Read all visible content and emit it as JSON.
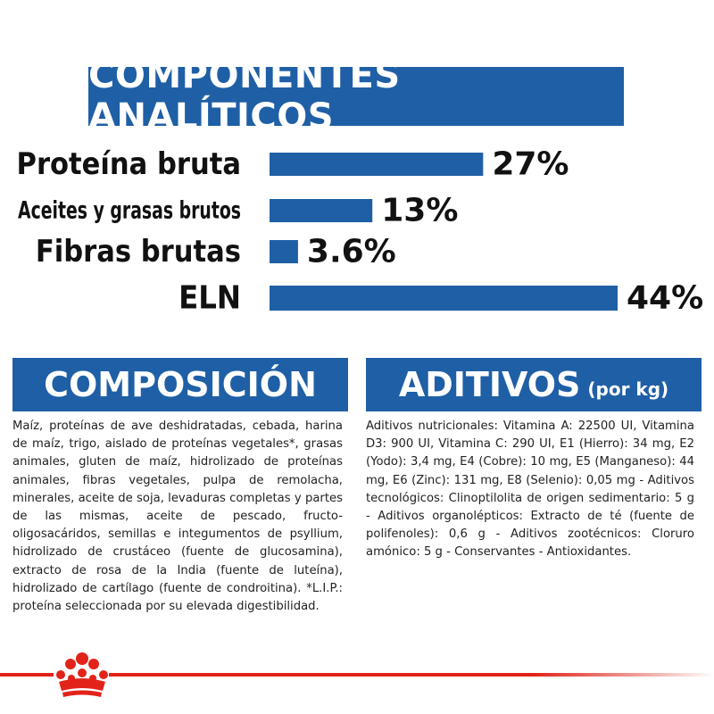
{
  "header": {
    "title": "COMPONENTES ANALÍTICOS"
  },
  "chart_data": {
    "type": "bar",
    "orientation": "horizontal",
    "categories": [
      "Proteína bruta",
      "Aceites y grasas brutos",
      "Fibras brutas",
      "ELN"
    ],
    "values": [
      27,
      13,
      3.6,
      44
    ],
    "value_labels": [
      "27%",
      "13%",
      "3.6%",
      "44%"
    ],
    "xlim": [
      0,
      44
    ],
    "grid": false,
    "legend": "none",
    "bar_color": "#1f5fa6"
  },
  "composicion": {
    "title": "COMPOSICIÓN",
    "text": "Maíz, proteínas de ave deshidratadas, cebada, harina de maíz, trigo, aislado de proteínas vegetales*, grasas animales, gluten de maíz, hidrolizado de proteínas animales, fibras vegetales, pulpa de remolacha, minerales, aceite de soja, levaduras completas y partes de las mismas, aceite de pescado, fructo-oligosacáridos, semillas e integumentos de psyllium, hidrolizado de crustáceo (fuente de glucosamina), extracto de rosa de la India (fuente de luteína), hidrolizado de cartílago (fuente de condroitina). *L.I.P.: proteína seleccionada por su elevada digestibilidad."
  },
  "aditivos": {
    "title": "ADITIVOS",
    "subtitle": "(por kg)",
    "text": "Aditivos nutricionales: Vitamina A: 22500 UI, Vitamina D3: 900 UI, Vitamina C: 290 UI, E1 (Hierro): 34 mg, E2 (Yodo): 3,4 mg, E4 (Cobre): 10 mg, E5 (Manganeso): 44 mg, E6 (Zinc): 131 mg, E8 (Selenio): 0,05 mg - Aditivos tecnológicos: Clinoptilolita de origen sedimentario: 5 g - Aditivos organolépticos: Extracto de té (fuente de polifenoles): 0,6 g - Aditivos zootécnicos: Cloruro amónico: 5 g - Conservantes - Antioxidantes."
  },
  "colors": {
    "brand_blue": "#1f5fa6",
    "brand_red": "#e2231a"
  },
  "icons": {
    "logo": "royal-crown-icon"
  }
}
